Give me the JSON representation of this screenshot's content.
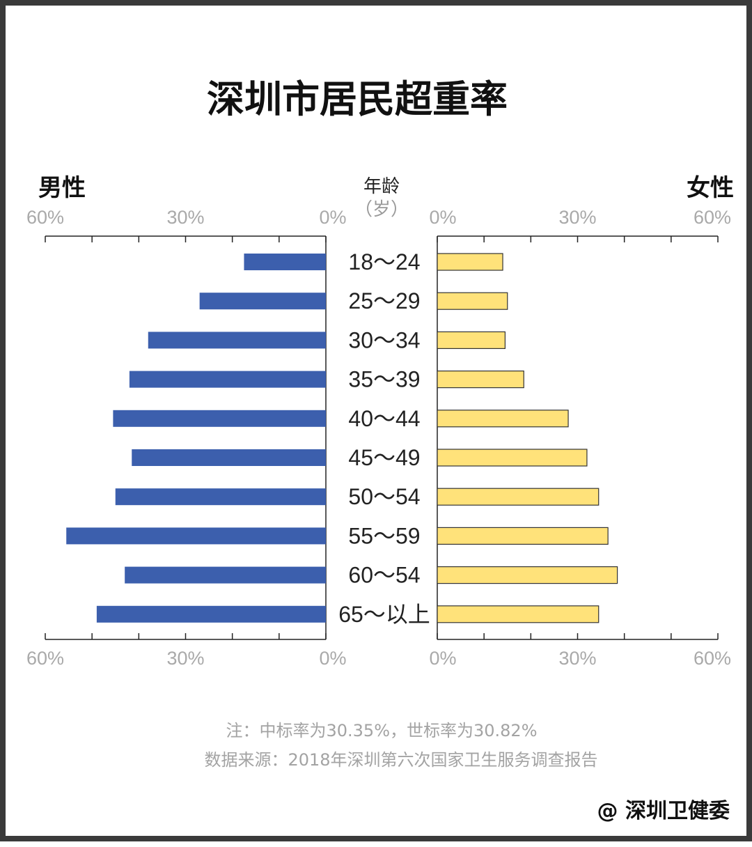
{
  "colors": {
    "male": "#3c5fad",
    "female": "#ffe27a",
    "female_stroke": "#333333",
    "axis": "#222222",
    "tick_label": "#a9a9a9",
    "note": "#a3a3a3",
    "frame": "#3a3a3a"
  },
  "header": {
    "title": "深圳市居民超重率"
  },
  "legend": {
    "male": "男性",
    "female": "女性",
    "age_header": "年龄",
    "age_unit": "（岁）"
  },
  "chart_data": {
    "type": "bar",
    "orientation": "horizontal-butterfly",
    "title": "深圳市居民超重率",
    "categories": [
      "18～24",
      "25～29",
      "30～34",
      "35～39",
      "40～44",
      "45～49",
      "50～54",
      "55～59",
      "60～54",
      "65～以上"
    ],
    "series": [
      {
        "name": "男性",
        "side": "left",
        "values": [
          17.5,
          27,
          38,
          42,
          45.5,
          41.5,
          45,
          55.5,
          43,
          49
        ]
      },
      {
        "name": "女性",
        "side": "right",
        "values": [
          14,
          15,
          14.5,
          18.5,
          28,
          32,
          34.5,
          36.5,
          38.5,
          34.5
        ]
      }
    ],
    "xlim": [
      0,
      60
    ],
    "tick_labels": [
      "60%",
      "30%",
      "0%",
      "0%",
      "30%",
      "60%"
    ],
    "grid": false
  },
  "notes": {
    "line1": "注：中标率为30.35%，世标率为30.82%",
    "line2": "数据来源：2018年深圳第六次国家卫生服务调查报告"
  },
  "brand": {
    "text": "@ 深圳卫健委"
  }
}
